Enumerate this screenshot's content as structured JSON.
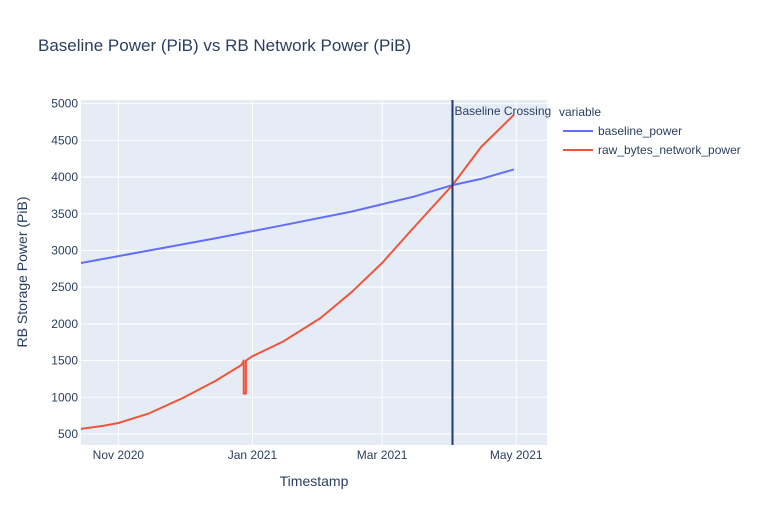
{
  "chart_data": {
    "type": "line",
    "title": "Baseline Power (PiB) vs RB Network Power (PiB)",
    "xlabel": "Timestamp",
    "ylabel": "RB Storage Power (PiB)",
    "x_range": [
      "2020-10-15",
      "2021-05-15"
    ],
    "ylim": [
      350,
      5050
    ],
    "x_ticks": [
      {
        "date": "2020-11-01",
        "label": "Nov 2020"
      },
      {
        "date": "2021-01-01",
        "label": "Jan 2021"
      },
      {
        "date": "2021-03-01",
        "label": "Mar 2021"
      },
      {
        "date": "2021-05-01",
        "label": "May 2021"
      }
    ],
    "y_ticks": [
      500,
      1000,
      1500,
      2000,
      2500,
      3000,
      3500,
      4000,
      4500,
      5000
    ],
    "grid": true,
    "legend": {
      "title": "variable",
      "placement": "top-right-outside"
    },
    "annotation": {
      "label": "Baseline Crossing",
      "x": "2021-04-02",
      "color": "#1f3a6e"
    },
    "series": [
      {
        "name": "baseline_power",
        "color": "#636efa",
        "points": [
          [
            "2020-10-15",
            2830
          ],
          [
            "2020-11-15",
            3000
          ],
          [
            "2020-12-15",
            3165
          ],
          [
            "2021-01-15",
            3345
          ],
          [
            "2021-02-15",
            3530
          ],
          [
            "2021-03-15",
            3730
          ],
          [
            "2021-04-02",
            3890
          ],
          [
            "2021-04-15",
            3975
          ],
          [
            "2021-04-30",
            4105
          ]
        ]
      },
      {
        "name": "raw_bytes_network_power",
        "color": "#ef553b",
        "points": [
          [
            "2020-10-15",
            570
          ],
          [
            "2020-10-25",
            610
          ],
          [
            "2020-11-01",
            650
          ],
          [
            "2020-11-15",
            780
          ],
          [
            "2020-12-01",
            1000
          ],
          [
            "2020-12-15",
            1220
          ],
          [
            "2020-12-27",
            1440
          ],
          [
            "2020-12-28",
            1500
          ],
          [
            "2020-12-28",
            1050
          ],
          [
            "2020-12-29",
            1050
          ],
          [
            "2020-12-29",
            1500
          ],
          [
            "2021-01-01",
            1560
          ],
          [
            "2021-01-15",
            1760
          ],
          [
            "2021-02-01",
            2080
          ],
          [
            "2021-02-15",
            2430
          ],
          [
            "2021-03-01",
            2830
          ],
          [
            "2021-03-15",
            3300
          ],
          [
            "2021-04-02",
            3890
          ],
          [
            "2021-04-15",
            4410
          ],
          [
            "2021-04-30",
            4850
          ]
        ]
      }
    ]
  }
}
